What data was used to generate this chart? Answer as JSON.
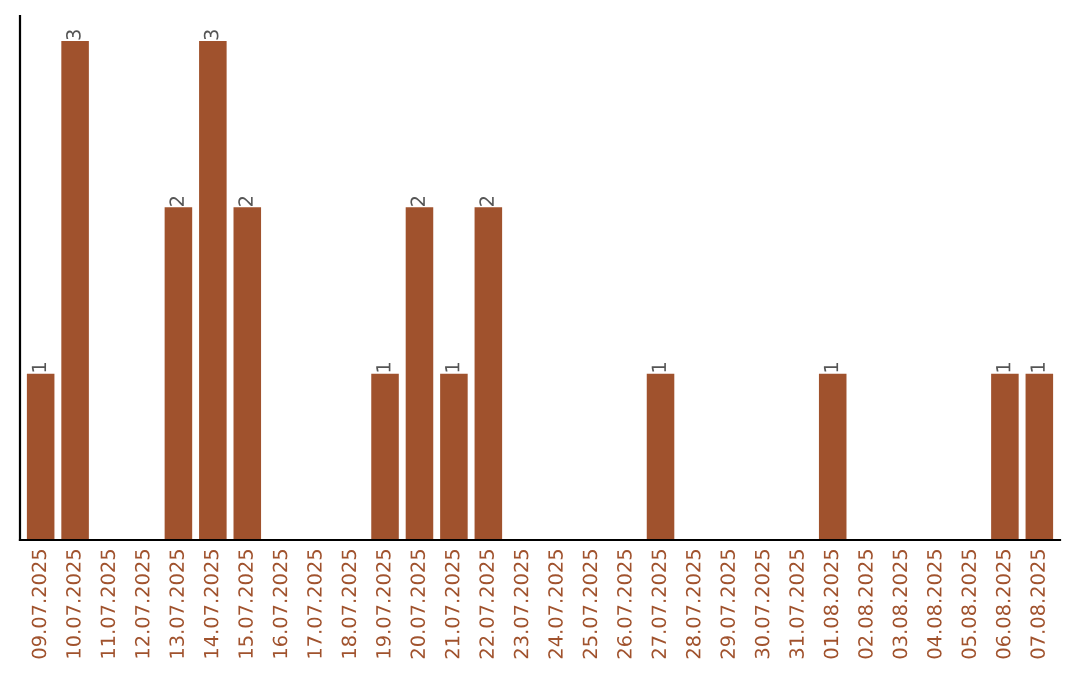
{
  "chart_data": {
    "type": "bar",
    "categories": [
      "09.07.2025",
      "10.07.2025",
      "11.07.2025",
      "12.07.2025",
      "13.07.2025",
      "14.07.2025",
      "15.07.2025",
      "16.07.2025",
      "17.07.2025",
      "18.07.2025",
      "19.07.2025",
      "20.07.2025",
      "21.07.2025",
      "22.07.2025",
      "23.07.2025",
      "24.07.2025",
      "25.07.2025",
      "26.07.2025",
      "27.07.2025",
      "28.07.2025",
      "29.07.2025",
      "30.07.2025",
      "31.07.2025",
      "01.08.2025",
      "02.08.2025",
      "03.08.2025",
      "04.08.2025",
      "05.08.2025",
      "06.08.2025",
      "07.08.2025"
    ],
    "values": [
      1,
      3,
      0,
      0,
      2,
      3,
      2,
      0,
      0,
      0,
      1,
      2,
      1,
      2,
      0,
      0,
      0,
      0,
      1,
      0,
      0,
      0,
      0,
      1,
      0,
      0,
      0,
      0,
      1,
      1
    ],
    "value_labels": [
      "1",
      "3",
      null,
      null,
      "2",
      "3",
      "2",
      null,
      null,
      null,
      "1",
      "2",
      "1",
      "2",
      null,
      null,
      null,
      null,
      "1",
      null,
      null,
      null,
      null,
      "1",
      null,
      null,
      null,
      null,
      "1",
      "1"
    ],
    "color": "#a0522d",
    "grid": false,
    "legend": false
  }
}
